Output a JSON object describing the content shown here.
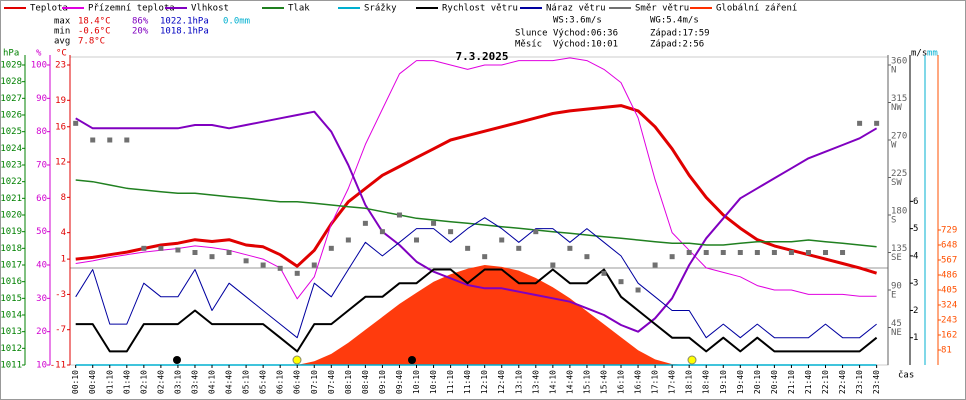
{
  "title": "7.3.2025",
  "stats": {
    "rows": [
      {
        "label": "max",
        "items": [
          "18.4°C",
          "86%",
          "1022.1hPa",
          "0.0mm"
        ]
      },
      {
        "label": "min",
        "items": [
          "-0.6°C",
          "20%",
          "1018.1hPa"
        ]
      },
      {
        "label": "avg",
        "items": [
          "7.8°C"
        ]
      }
    ],
    "colors": [
      "#e00000",
      "#8000c0",
      "#0000c0",
      "#00b0d0"
    ]
  },
  "wind": [
    "WS:3.6m/s",
    "WG:5.4m/s"
  ],
  "sun": [
    "Slunce",
    "Východ:06:36",
    "Západ:17:59"
  ],
  "moon": [
    "Měsíc",
    "Východ:10:01",
    "Západ:2:56"
  ],
  "chart_data": {
    "type": "line",
    "xlabel": "čas",
    "categories": [
      "00:10",
      "00:40",
      "01:10",
      "01:40",
      "02:10",
      "02:40",
      "03:10",
      "03:40",
      "04:10",
      "04:40",
      "05:10",
      "05:40",
      "06:10",
      "06:40",
      "07:10",
      "07:40",
      "08:10",
      "08:40",
      "09:10",
      "09:40",
      "10:10",
      "10:40",
      "11:10",
      "11:40",
      "12:10",
      "12:40",
      "13:10",
      "13:40",
      "14:10",
      "14:40",
      "15:10",
      "15:40",
      "16:10",
      "16:40",
      "17:10",
      "17:40",
      "18:10",
      "18:40",
      "19:10",
      "19:40",
      "20:10",
      "20:40",
      "21:10",
      "21:40",
      "22:10",
      "22:40",
      "23:10",
      "23:40"
    ],
    "axes": {
      "p": {
        "unit": "hPa",
        "color": "#008000",
        "ylim": [
          1011,
          1029
        ],
        "yticks": [
          1011,
          1012,
          1013,
          1014,
          1015,
          1016,
          1017,
          1018,
          1019,
          1020,
          1021,
          1022,
          1023,
          1024,
          1025,
          1026,
          1027,
          1028,
          1029
        ]
      },
      "h": {
        "unit": "%",
        "color": "#d000d0",
        "ylim": [
          10,
          100
        ],
        "yticks": [
          10,
          20,
          30,
          40,
          50,
          60,
          70,
          80,
          90,
          100
        ]
      },
      "t": {
        "unit": "°C",
        "color": "#e00000",
        "ylim": [
          -11,
          23
        ],
        "yticks": [
          -11,
          -7,
          -3,
          1,
          4,
          8,
          12,
          16,
          19,
          23
        ]
      },
      "d": {
        "color": "#606060",
        "ylim": [
          0,
          360
        ],
        "yticks": [
          {
            "value": 45,
            "label": "45",
            "sub": "NE"
          },
          {
            "value": 90,
            "label": "90",
            "sub": "E"
          },
          {
            "value": 135,
            "label": "135",
            "sub": "SE"
          },
          {
            "value": 180,
            "label": "180",
            "sub": "S"
          },
          {
            "value": 225,
            "label": "225",
            "sub": "SW"
          },
          {
            "value": 270,
            "label": "270",
            "sub": "W"
          },
          {
            "value": 315,
            "label": "315",
            "sub": "NW"
          },
          {
            "value": 360,
            "label": "360",
            "sub": "N"
          }
        ]
      },
      "w": {
        "unit": "m/s",
        "color": "#000000",
        "ylim": [
          0,
          11
        ],
        "yticks": [
          1,
          2,
          3,
          4,
          5,
          6
        ]
      },
      "r": {
        "unit": "mm",
        "color": "#00b0d0",
        "ylim": [
          0,
          1
        ],
        "yticks": []
      },
      "s": {
        "color": "#ff5000",
        "ylim": [
          0,
          1620
        ],
        "yticks": [
          81,
          162,
          243,
          324,
          405,
          486,
          567,
          648,
          729
        ]
      }
    },
    "series": [
      {
        "name": "Teplota",
        "type": "line",
        "axis": "t",
        "color": "#e00000",
        "width": 3,
        "values": [
          1.0,
          1.2,
          1.5,
          1.8,
          2.2,
          2.6,
          2.8,
          3.2,
          3.0,
          3.2,
          2.6,
          2.4,
          1.5,
          0.2,
          2.0,
          5.0,
          7.5,
          9.0,
          10.5,
          11.5,
          12.5,
          13.5,
          14.5,
          15.0,
          15.5,
          16.0,
          16.5,
          17.0,
          17.5,
          17.8,
          18.0,
          18.2,
          18.4,
          17.8,
          16.0,
          13.5,
          10.5,
          8.0,
          6.0,
          4.5,
          3.2,
          2.5,
          2.0,
          1.5,
          1.0,
          0.5,
          0.0,
          -0.6
        ]
      },
      {
        "name": "Přízemní teplota",
        "type": "line",
        "axis": "t",
        "color": "#e000e0",
        "width": 1,
        "values": [
          0.5,
          0.8,
          1.2,
          1.5,
          1.8,
          2.0,
          2.2,
          2.5,
          2.3,
          2.0,
          1.5,
          1.0,
          0.0,
          -3.5,
          -1.0,
          5.0,
          9.0,
          14.0,
          18.0,
          22.0,
          23.5,
          23.5,
          23.0,
          22.5,
          23.0,
          23.0,
          23.5,
          23.5,
          23.5,
          23.8,
          23.5,
          22.5,
          21.0,
          17.0,
          10.0,
          4.0,
          2.0,
          0.0,
          -0.5,
          -1.0,
          -2.0,
          -2.5,
          -2.5,
          -3.0,
          -3.0,
          -3.0,
          -3.2,
          -3.2
        ]
      },
      {
        "name": "Vlhkost",
        "type": "line",
        "axis": "h",
        "color": "#8000c0",
        "width": 2,
        "values": [
          84,
          81,
          81,
          81,
          81,
          81,
          81,
          82,
          82,
          81,
          82,
          83,
          84,
          85,
          86,
          80,
          70,
          58,
          50,
          46,
          41,
          38,
          36,
          34,
          33,
          33,
          32,
          31,
          30,
          29,
          27,
          25,
          22,
          20,
          24,
          30,
          40,
          48,
          54,
          60,
          63,
          66,
          69,
          72,
          74,
          76,
          78,
          81
        ]
      },
      {
        "name": "Tlak",
        "type": "line",
        "axis": "p",
        "color": "#208020",
        "width": 1.5,
        "values": [
          1022.1,
          1022.0,
          1021.8,
          1021.6,
          1021.5,
          1021.4,
          1021.3,
          1021.3,
          1021.2,
          1021.1,
          1021.0,
          1020.9,
          1020.8,
          1020.8,
          1020.7,
          1020.6,
          1020.5,
          1020.4,
          1020.2,
          1020.0,
          1019.8,
          1019.7,
          1019.6,
          1019.5,
          1019.4,
          1019.3,
          1019.2,
          1019.1,
          1019.0,
          1018.9,
          1018.8,
          1018.7,
          1018.6,
          1018.5,
          1018.4,
          1018.3,
          1018.3,
          1018.2,
          1018.2,
          1018.3,
          1018.4,
          1018.4,
          1018.4,
          1018.5,
          1018.4,
          1018.3,
          1018.2,
          1018.1
        ]
      },
      {
        "name": "Srážky",
        "type": "line",
        "axis": "r",
        "color": "#00b0d0",
        "width": 1.5,
        "values": [
          0,
          0,
          0,
          0,
          0,
          0,
          0,
          0,
          0,
          0,
          0,
          0,
          0,
          0,
          0,
          0,
          0,
          0,
          0,
          0,
          0,
          0,
          0,
          0,
          0,
          0,
          0,
          0,
          0,
          0,
          0,
          0,
          0,
          0,
          0,
          0,
          0,
          0,
          0,
          0,
          0,
          0,
          0,
          0,
          0,
          0,
          0,
          0
        ]
      },
      {
        "name": "Rychlost větru",
        "type": "line",
        "axis": "w",
        "color": "#000000",
        "width": 2,
        "values": [
          1.5,
          1.5,
          0.5,
          0.5,
          1.5,
          1.5,
          1.5,
          2.0,
          1.5,
          1.5,
          1.5,
          1.5,
          1.0,
          0.5,
          1.5,
          1.5,
          2.0,
          2.5,
          2.5,
          3.0,
          3.0,
          3.5,
          3.5,
          3.0,
          3.5,
          3.5,
          3.0,
          3.0,
          3.5,
          3.0,
          3.0,
          3.5,
          2.5,
          2.0,
          1.5,
          1.0,
          1.0,
          0.5,
          1.0,
          0.5,
          1.0,
          0.5,
          0.5,
          0.5,
          0.5,
          0.5,
          0.5,
          1.0
        ]
      },
      {
        "name": "Náraz větru",
        "type": "line",
        "axis": "w",
        "color": "#0000a0",
        "width": 1,
        "values": [
          2.5,
          3.5,
          1.5,
          1.5,
          3.0,
          2.5,
          2.5,
          3.5,
          2.0,
          3.0,
          2.5,
          2.0,
          1.5,
          1.0,
          3.0,
          2.5,
          3.5,
          4.5,
          4.0,
          4.5,
          5.0,
          5.0,
          4.5,
          5.0,
          5.4,
          5.0,
          4.5,
          5.0,
          5.0,
          4.5,
          5.0,
          4.5,
          4.0,
          3.0,
          2.5,
          2.0,
          2.0,
          1.0,
          1.5,
          1.0,
          1.5,
          1.0,
          1.0,
          1.0,
          1.5,
          1.0,
          1.0,
          1.5
        ]
      },
      {
        "name": "Směr větru",
        "type": "scatter",
        "axis": "d",
        "color": "#707070",
        "values": [
          290,
          270,
          270,
          270,
          140,
          140,
          138,
          135,
          130,
          135,
          125,
          120,
          116,
          110,
          120,
          140,
          150,
          170,
          160,
          180,
          150,
          170,
          160,
          140,
          130,
          150,
          140,
          160,
          120,
          140,
          130,
          110,
          100,
          90,
          120,
          130,
          135,
          135,
          135,
          135,
          135,
          135,
          135,
          135,
          135,
          135,
          290,
          290
        ]
      },
      {
        "name": "Globální záření",
        "type": "area",
        "axis": "s",
        "color": "#ff3000",
        "values": [
          0,
          0,
          0,
          0,
          0,
          0,
          0,
          0,
          0,
          0,
          0,
          0,
          0,
          0,
          20,
          60,
          120,
          190,
          260,
          330,
          390,
          450,
          490,
          520,
          540,
          530,
          510,
          470,
          420,
          360,
          290,
          220,
          150,
          80,
          30,
          5,
          0,
          0,
          0,
          0,
          0,
          0,
          0,
          0,
          0,
          0,
          0,
          0
        ]
      }
    ]
  }
}
